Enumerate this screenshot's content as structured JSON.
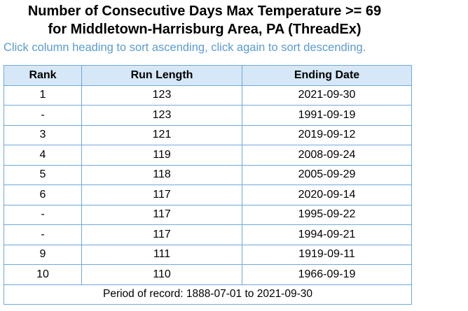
{
  "header": {
    "title_line1": "Number of Consecutive Days Max Temperature >= 69",
    "title_line2": "for Middletown-Harrisburg Area, PA (ThreadEx)",
    "instructions": "Click column heading to sort ascending, click again to sort descending."
  },
  "table": {
    "columns": [
      "Rank",
      "Run Length",
      "Ending Date"
    ],
    "rows": [
      {
        "rank": "1",
        "run_length": "123",
        "ending_date": "2021-09-30"
      },
      {
        "rank": "-",
        "run_length": "123",
        "ending_date": "1991-09-19"
      },
      {
        "rank": "3",
        "run_length": "121",
        "ending_date": "2019-09-12"
      },
      {
        "rank": "4",
        "run_length": "119",
        "ending_date": "2008-09-24"
      },
      {
        "rank": "5",
        "run_length": "118",
        "ending_date": "2005-09-29"
      },
      {
        "rank": "6",
        "run_length": "117",
        "ending_date": "2020-09-14"
      },
      {
        "rank": "-",
        "run_length": "117",
        "ending_date": "1995-09-22"
      },
      {
        "rank": "-",
        "run_length": "117",
        "ending_date": "1994-09-21"
      },
      {
        "rank": "9",
        "run_length": "111",
        "ending_date": "1919-09-11"
      },
      {
        "rank": "10",
        "run_length": "110",
        "ending_date": "1966-09-19"
      }
    ],
    "footer": "Period of record: 1888-07-01 to 2021-09-30"
  },
  "colors": {
    "hint_text": "#5b9bd5",
    "border": "#6fa8dc",
    "header_bg": "#d6e8f7"
  }
}
